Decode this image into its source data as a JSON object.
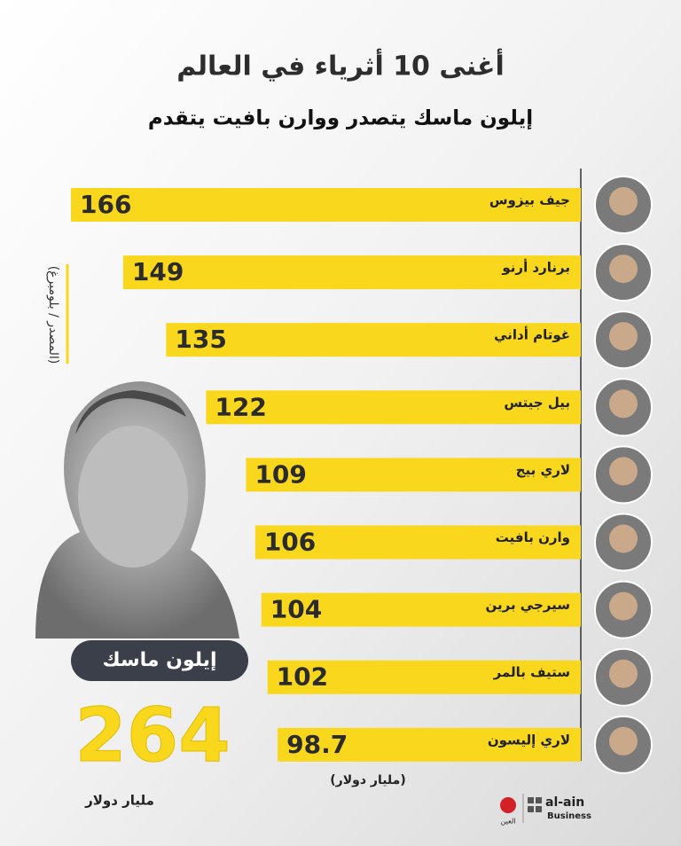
{
  "chart_data": {
    "type": "bar",
    "orientation": "horizontal",
    "title": "أغنى 10 أثرياء في العالم",
    "subtitle": "إيلون ماسك يتصدر ووارن بافيت يتقدم",
    "source": "(المصدر / بلومبرغ)",
    "unit": "(مليار دولار)",
    "categories": [
      "جيف بيزوس",
      "برنارد أرنو",
      "غوتام أداني",
      "بيل جيتس",
      "لاري بيج",
      "وارن بافيت",
      "سيرجي برين",
      "ستيف بالمر",
      "لاري إليسون"
    ],
    "values": [
      166,
      149,
      135,
      122,
      109,
      106,
      104,
      102,
      98.7
    ],
    "color": "#f9d71c",
    "highlight": {
      "label": "إيلون ماسك",
      "value": 264,
      "unit": "مليار دولار"
    },
    "logo": {
      "brand": "al-ain",
      "section": "Business",
      "mark": "العين"
    }
  }
}
